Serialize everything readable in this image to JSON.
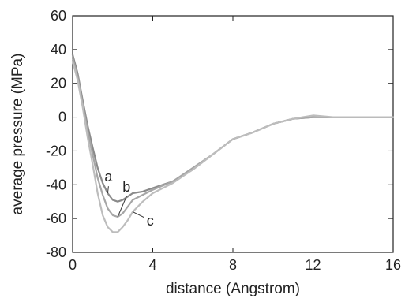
{
  "chart_data": {
    "type": "line",
    "title": "",
    "xlabel": "distance (Angstrom)",
    "ylabel": "average pressure (MPa)",
    "xlim": [
      0,
      16
    ],
    "ylim": [
      -80,
      60
    ],
    "x_ticks": [
      "0",
      "4",
      "8",
      "12",
      "16"
    ],
    "y_ticks": [
      "60",
      "40",
      "20",
      "0",
      "-20",
      "-40",
      "-60",
      "-80"
    ],
    "grid": false,
    "legend": "none",
    "series_colors": [
      "#8a8a8a",
      "#a6a6a6",
      "#bdbdbd"
    ],
    "series": [
      {
        "name": "a",
        "x": [
          0,
          0.25,
          0.5,
          0.75,
          1.0,
          1.25,
          1.5,
          1.75,
          2.0,
          2.25,
          2.5,
          2.75,
          3.0,
          3.5,
          4.0,
          5.0,
          6.0,
          7.0,
          8.0,
          9.0,
          10.0,
          11.0,
          12.0,
          13.0,
          14.0,
          15.0,
          16.0
        ],
        "y": [
          37,
          26,
          10,
          -5,
          -18,
          -30,
          -39,
          -45,
          -49,
          -50,
          -49,
          -47,
          -45,
          -44,
          -42,
          -38,
          -31,
          -22,
          -13,
          -9,
          -4,
          -1,
          0,
          0,
          0,
          0,
          0
        ]
      },
      {
        "name": "b",
        "x": [
          0,
          0.25,
          0.5,
          0.75,
          1.0,
          1.25,
          1.5,
          1.75,
          2.0,
          2.25,
          2.5,
          2.75,
          3.0,
          3.5,
          4.0,
          5.0,
          6.0,
          7.0,
          8.0,
          9.0,
          10.0,
          11.0,
          12.0,
          13.0,
          14.0,
          15.0,
          16.0
        ],
        "y": [
          35,
          24,
          8,
          -8,
          -22,
          -36,
          -46,
          -54,
          -58,
          -59,
          -57,
          -53,
          -49,
          -46,
          -43,
          -38,
          -30,
          -22,
          -13,
          -9,
          -4,
          -1,
          0,
          0,
          0,
          0,
          0
        ]
      },
      {
        "name": "c",
        "x": [
          0,
          0.25,
          0.5,
          0.75,
          1.0,
          1.25,
          1.5,
          1.75,
          2.0,
          2.25,
          2.5,
          2.75,
          3.0,
          3.5,
          4.0,
          5.0,
          6.0,
          7.0,
          8.0,
          9.0,
          10.0,
          11.0,
          12.0,
          13.0,
          14.0,
          15.0,
          16.0
        ],
        "y": [
          33,
          22,
          6,
          -12,
          -28,
          -45,
          -58,
          -65,
          -68,
          -68,
          -65,
          -61,
          -56,
          -50,
          -45,
          -39,
          -31,
          -22,
          -13,
          -9,
          -4,
          -1,
          1,
          0,
          0,
          0,
          0
        ]
      }
    ],
    "annotations": [
      {
        "text": "a",
        "x": 1.75,
        "y": -39
      },
      {
        "text": "b",
        "x": 2.65,
        "y": -45
      },
      {
        "text": "c",
        "x": 3.85,
        "y": -65
      }
    ]
  }
}
